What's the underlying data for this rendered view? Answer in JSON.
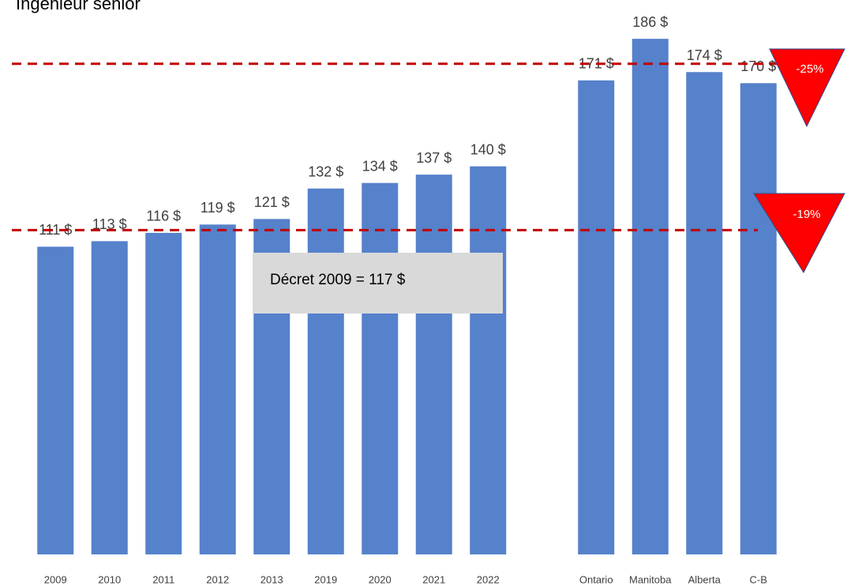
{
  "chart_data": {
    "type": "bar",
    "title": "Ingénieur senior",
    "categories": [
      "2009",
      "2010",
      "2011",
      "2012",
      "2013",
      "2019",
      "2020",
      "2021",
      "2022",
      null,
      "Ontario",
      "Manitoba",
      "Alberta",
      "C-B"
    ],
    "values": [
      111,
      113,
      116,
      119,
      121,
      132,
      134,
      137,
      140,
      null,
      171,
      186,
      174,
      170
    ],
    "value_labels": [
      "111 $",
      "113 $",
      "116 $",
      "119 $",
      "121 $",
      "132 $",
      "134 $",
      "137 $",
      "140 $",
      null,
      "171 $",
      "186 $",
      "174 $",
      "170 $"
    ],
    "color": "#5681cb",
    "ylim": [
      0,
      200
    ],
    "reference_lines": [
      {
        "value": 117,
        "label": "Décret 2009 = 117 $",
        "color": "#c00000"
      },
      {
        "value": 177,
        "color": "#c00000"
      }
    ],
    "annotations": [
      "-25%",
      "-19%"
    ]
  }
}
